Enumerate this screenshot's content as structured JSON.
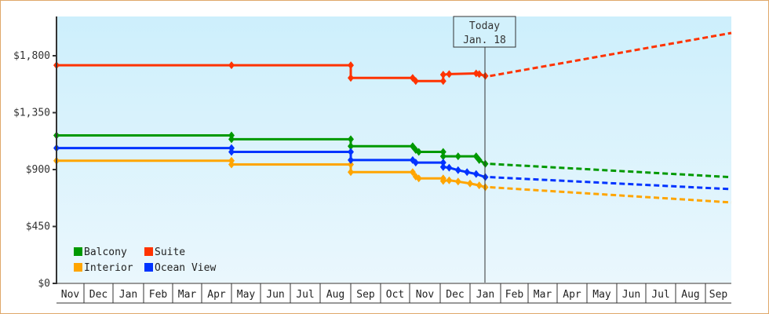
{
  "chart_data": {
    "type": "line",
    "title": "",
    "xlabel": "",
    "ylabel": "",
    "ylim": [
      0,
      2100
    ],
    "y_ticks": [
      "$0",
      "$450",
      "$900",
      "$1,350",
      "$1,800"
    ],
    "y_tick_values": [
      0,
      450,
      900,
      1350,
      1800
    ],
    "x_ticks": [
      "Nov",
      "Dec",
      "Jan",
      "Feb",
      "Mar",
      "Apr",
      "May",
      "Jun",
      "Jul",
      "Aug",
      "Sep",
      "Oct",
      "Nov",
      "Dec",
      "Jan",
      "Feb",
      "Mar",
      "Apr",
      "May",
      "Jun",
      "Jul",
      "Aug",
      "Sep"
    ],
    "grid": false,
    "legend_position": "lower-left",
    "annotation": {
      "label_line1": "Today",
      "label_line2": "Jan. 18",
      "x_month_index": 14.5
    },
    "series": [
      {
        "name": "Balcony",
        "color": "#009900",
        "points": [
          [
            0,
            1170
          ],
          [
            6,
            1170
          ],
          [
            6,
            1140
          ],
          [
            10,
            1140
          ],
          [
            10,
            1085
          ],
          [
            12.1,
            1085
          ],
          [
            12.2,
            1055
          ],
          [
            12.3,
            1040
          ],
          [
            13.1,
            1040
          ],
          [
            13.1,
            1005
          ],
          [
            13.6,
            1005
          ],
          [
            14.2,
            1005
          ],
          [
            14.3,
            975
          ],
          [
            14.5,
            945
          ]
        ],
        "projection": [
          [
            14.5,
            945
          ],
          [
            23,
            840
          ]
        ]
      },
      {
        "name": "Suite",
        "color": "#ff3300",
        "points": [
          [
            0,
            1725
          ],
          [
            6,
            1725
          ],
          [
            10,
            1725
          ],
          [
            10,
            1625
          ],
          [
            12.1,
            1625
          ],
          [
            12.2,
            1600
          ],
          [
            13.1,
            1600
          ],
          [
            13.1,
            1650
          ],
          [
            13.3,
            1655
          ],
          [
            14.2,
            1660
          ],
          [
            14.3,
            1655
          ],
          [
            14.5,
            1640
          ]
        ],
        "projection": [
          [
            14.5,
            1640
          ],
          [
            23,
            1980
          ]
        ]
      },
      {
        "name": "Interior",
        "color": "#ffa500",
        "points": [
          [
            0,
            970
          ],
          [
            6,
            970
          ],
          [
            6,
            940
          ],
          [
            10,
            940
          ],
          [
            10,
            880
          ],
          [
            12.1,
            880
          ],
          [
            12.2,
            845
          ],
          [
            12.3,
            830
          ],
          [
            13.1,
            830
          ],
          [
            13.1,
            810
          ],
          [
            13.3,
            815
          ],
          [
            13.6,
            805
          ],
          [
            14.0,
            790
          ],
          [
            14.3,
            775
          ],
          [
            14.5,
            760
          ]
        ],
        "projection": [
          [
            14.5,
            760
          ],
          [
            23,
            640
          ]
        ]
      },
      {
        "name": "Ocean View",
        "color": "#0033ff",
        "points": [
          [
            0,
            1070
          ],
          [
            6,
            1070
          ],
          [
            6,
            1040
          ],
          [
            10,
            1040
          ],
          [
            10,
            975
          ],
          [
            12.1,
            975
          ],
          [
            12.2,
            955
          ],
          [
            13.1,
            955
          ],
          [
            13.1,
            920
          ],
          [
            13.3,
            915
          ],
          [
            13.6,
            895
          ],
          [
            13.9,
            880
          ],
          [
            14.2,
            865
          ],
          [
            14.5,
            840
          ]
        ],
        "projection": [
          [
            14.5,
            840
          ],
          [
            23,
            745
          ]
        ]
      }
    ]
  },
  "legend": {
    "items": [
      {
        "label": "Balcony",
        "color": "#009900"
      },
      {
        "label": "Suite",
        "color": "#ff3300"
      },
      {
        "label": "Interior",
        "color": "#ffa500"
      },
      {
        "label": "Ocean View",
        "color": "#0033ff"
      }
    ]
  },
  "today": {
    "line1": "Today",
    "line2": "Jan. 18"
  }
}
